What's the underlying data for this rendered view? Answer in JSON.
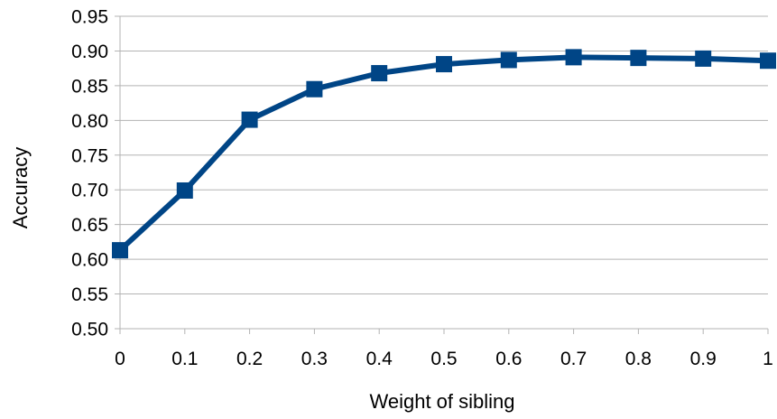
{
  "chart_data": {
    "type": "line",
    "title": "",
    "xlabel": "Weight of sibling",
    "ylabel": "Accuracy",
    "x": [
      0,
      0.1,
      0.2,
      0.3,
      0.4,
      0.5,
      0.6,
      0.7,
      0.8,
      0.9,
      1
    ],
    "x_tick_labels": [
      "0",
      "0.1",
      "0.2",
      "0.3",
      "0.4",
      "0.5",
      "0.6",
      "0.7",
      "0.8",
      "0.9",
      "1"
    ],
    "y_tick_labels": [
      "0.50",
      "0.55",
      "0.60",
      "0.65",
      "0.70",
      "0.75",
      "0.80",
      "0.85",
      "0.90",
      "0.95"
    ],
    "y_ticks": [
      0.5,
      0.55,
      0.6,
      0.65,
      0.7,
      0.75,
      0.8,
      0.85,
      0.9,
      0.95
    ],
    "xlim": [
      0,
      1
    ],
    "ylim": [
      0.5,
      0.95
    ],
    "grid": "horizontal",
    "legend": "none",
    "series": [
      {
        "values": [
          0.613,
          0.699,
          0.801,
          0.845,
          0.868,
          0.881,
          0.887,
          0.891,
          0.89,
          0.889,
          0.886
        ],
        "color": "#004586",
        "marker": "square"
      }
    ]
  }
}
